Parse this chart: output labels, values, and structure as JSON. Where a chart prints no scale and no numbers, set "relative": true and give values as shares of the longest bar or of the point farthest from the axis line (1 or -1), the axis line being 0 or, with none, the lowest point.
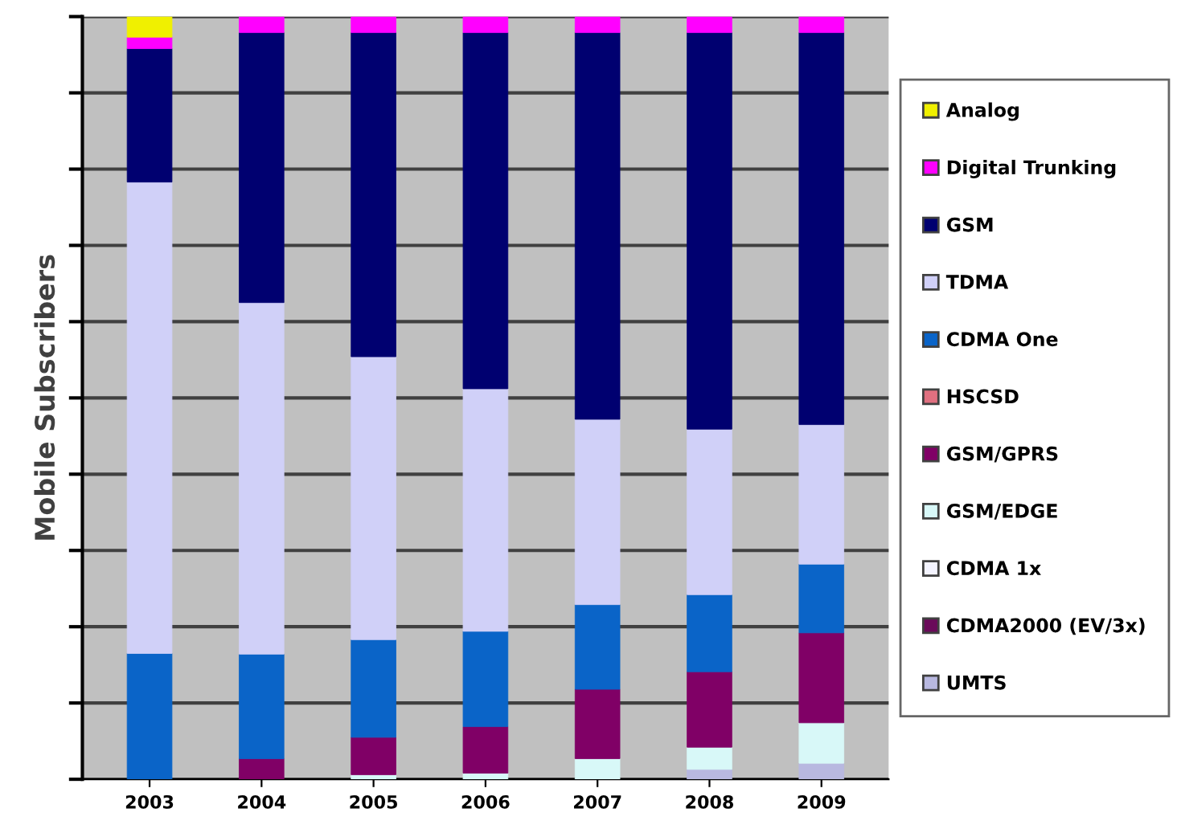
{
  "chart_data": {
    "type": "bar",
    "stacked": true,
    "relative": true,
    "ylabel": "Mobile Subscribers",
    "categories": [
      "2003",
      "2004",
      "2005",
      "2006",
      "2007",
      "2008",
      "2009"
    ],
    "series": [
      {
        "name": "UMTS",
        "color": "#b8b8e0",
        "values": [
          null,
          null,
          null,
          null,
          null,
          0.013,
          0.021
        ]
      },
      {
        "name": "CDMA2000 (EV/3x)",
        "color": "#6a0a5a",
        "values": [
          null,
          null,
          null,
          null,
          null,
          null,
          null
        ]
      },
      {
        "name": "CDMA 1x",
        "color": "#f4f4ff",
        "values": [
          null,
          null,
          null,
          null,
          null,
          null,
          null
        ]
      },
      {
        "name": "GSM/EDGE",
        "color": "#d8f8f8",
        "values": [
          null,
          null,
          0.006,
          0.008,
          0.027,
          0.029,
          0.053
        ]
      },
      {
        "name": "GSM/GPRS",
        "color": "#800066",
        "values": [
          null,
          0.027,
          0.049,
          0.061,
          0.091,
          0.099,
          0.118
        ]
      },
      {
        "name": "HSCSD",
        "color": "#e07080",
        "values": [
          null,
          null,
          null,
          null,
          null,
          null,
          null
        ]
      },
      {
        "name": "CDMA One",
        "color": "#0a64c8",
        "values": [
          0.165,
          0.137,
          0.128,
          0.125,
          0.111,
          0.101,
          0.09
        ]
      },
      {
        "name": "TDMA",
        "color": "#d0d0f8",
        "values": [
          0.618,
          0.461,
          0.371,
          0.318,
          0.243,
          0.217,
          0.183
        ]
      },
      {
        "name": "GSM",
        "color": "#000070",
        "values": [
          0.175,
          0.354,
          0.425,
          0.467,
          0.507,
          0.52,
          0.514
        ]
      },
      {
        "name": "Digital Trunking",
        "color": "#ff00ff",
        "values": [
          0.015,
          0.021,
          0.021,
          0.021,
          0.021,
          0.021,
          0.021
        ]
      },
      {
        "name": "Analog",
        "color": "#f0f000",
        "values": [
          0.027,
          null,
          null,
          null,
          null,
          null,
          null
        ]
      }
    ],
    "grid": "y",
    "legend": "right",
    "tick_labels": "x"
  }
}
